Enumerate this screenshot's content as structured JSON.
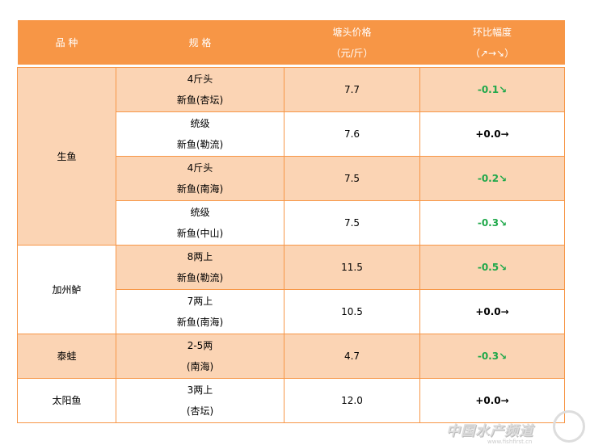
{
  "header": {
    "variety": "品 种",
    "spec": "规 格",
    "price_line1": "塘头价格",
    "price_line2": "（元/斤）",
    "change_line1": "环比幅度",
    "change_line2": "（↗→↘）"
  },
  "groups": [
    {
      "name": "生鱼",
      "rows": [
        {
          "spec1": "4斤头",
          "spec2": "新鱼(杏坛)",
          "price": "7.7",
          "change": "-0.1↘",
          "trend": "down"
        },
        {
          "spec1": "统级",
          "spec2": "新鱼(勒流)",
          "price": "7.6",
          "change": "+0.0→",
          "trend": "flat"
        },
        {
          "spec1": "4斤头",
          "spec2": "新鱼(南海)",
          "price": "7.5",
          "change": "-0.2↘",
          "trend": "down"
        },
        {
          "spec1": "统级",
          "spec2": "新鱼(中山)",
          "price": "7.5",
          "change": "-0.3↘",
          "trend": "down"
        }
      ]
    },
    {
      "name": "加州鲈",
      "rows": [
        {
          "spec1": "8两上",
          "spec2": "新鱼(勒流)",
          "price": "11.5",
          "change": "-0.5↘",
          "trend": "down"
        },
        {
          "spec1": "7两上",
          "spec2": "新鱼(南海)",
          "price": "10.5",
          "change": "+0.0→",
          "trend": "flat"
        }
      ]
    },
    {
      "name": "泰蛙",
      "rows": [
        {
          "spec1": "2-5两",
          "spec2": "(南海)",
          "price": "4.7",
          "change": "-0.3↘",
          "trend": "down"
        }
      ]
    },
    {
      "name": "太阳鱼",
      "rows": [
        {
          "spec1": "3两上",
          "spec2": "(杏坛)",
          "price": "12.0",
          "change": "+0.0→",
          "trend": "flat"
        }
      ]
    }
  ],
  "colors": {
    "header": "#F79646",
    "row_alt": "#FBD4B4",
    "down": "#1FA84A"
  },
  "watermark": {
    "text": "中国水产频道",
    "url": "www.fishfirst.cn"
  }
}
